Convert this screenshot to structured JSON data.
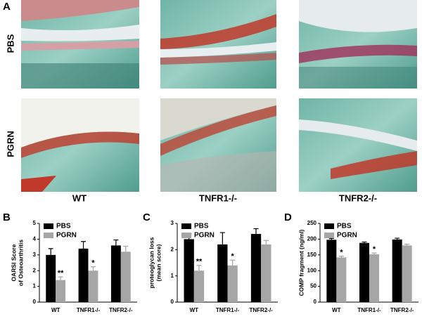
{
  "panel_labels": [
    "A",
    "B",
    "C",
    "D"
  ],
  "row_labels": [
    "PBS",
    "PGRN"
  ],
  "column_labels": [
    "WT",
    "TNFR1-/-",
    "TNFR2-/-"
  ],
  "chart_data": [
    {
      "type": "bar",
      "y_label": [
        "OARSI Score",
        "of Osteoarthritis"
      ],
      "categories": [
        "WT",
        "TNFR1-/-",
        "TNFR2-/-"
      ],
      "series": [
        {
          "name": "PBS",
          "color": "#000000",
          "values": [
            3.0,
            3.4,
            3.6
          ],
          "errors": [
            0.4,
            0.45,
            0.35
          ],
          "significance": [
            null,
            null,
            null
          ]
        },
        {
          "name": "PGRN",
          "color": "#a6a6a6",
          "values": [
            1.4,
            2.0,
            3.2
          ],
          "errors": [
            0.2,
            0.25,
            0.35
          ],
          "significance": [
            "**",
            "*",
            null
          ]
        }
      ],
      "ylim": [
        0,
        5
      ],
      "yticks": [
        0,
        1,
        2,
        3,
        4,
        5
      ]
    },
    {
      "type": "bar",
      "y_label": [
        "proteoglycan loss",
        "(mean score)"
      ],
      "categories": [
        "WT",
        "TNFR1-/-",
        "TNFR2-/-"
      ],
      "series": [
        {
          "name": "PBS",
          "color": "#000000",
          "values": [
            2.4,
            2.2,
            2.6
          ],
          "errors": [
            0.2,
            0.45,
            0.2
          ],
          "significance": [
            null,
            null,
            null
          ]
        },
        {
          "name": "PGRN",
          "color": "#a6a6a6",
          "values": [
            1.2,
            1.4,
            2.2
          ],
          "errors": [
            0.2,
            0.2,
            0.15
          ],
          "significance": [
            "**",
            "*",
            null
          ]
        }
      ],
      "ylim": [
        0,
        3
      ],
      "yticks": [
        0,
        1,
        2,
        3
      ]
    },
    {
      "type": "bar",
      "y_label": [
        "COMP fragment (ng/ml)"
      ],
      "categories": [
        "WT",
        "TNFR1-/-",
        "TNFR2-/-"
      ],
      "series": [
        {
          "name": "PBS",
          "color": "#000000",
          "values": [
            198,
            188,
            199
          ],
          "errors": [
            4,
            3,
            4
          ],
          "significance": [
            null,
            null,
            null
          ]
        },
        {
          "name": "PGRN",
          "color": "#a6a6a6",
          "values": [
            142,
            152,
            180
          ],
          "errors": [
            4,
            4,
            4
          ],
          "significance": [
            "*",
            "*",
            null
          ]
        }
      ],
      "ylim": [
        0,
        250
      ],
      "yticks": [
        0,
        50,
        100,
        150,
        200,
        250
      ]
    }
  ]
}
